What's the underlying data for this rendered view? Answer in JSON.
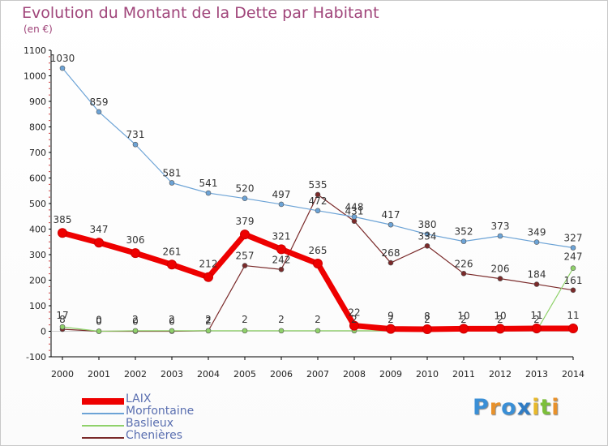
{
  "title": "Evolution du Montant de la Dette par Habitant",
  "subtitle": "(en €)",
  "brand": {
    "letters": [
      "P",
      "r",
      "o",
      "x",
      "i",
      "t",
      "i"
    ],
    "colors": [
      "#3a8fd6",
      "#e8912b",
      "#3a8fd6",
      "#2f7cc4",
      "#e8b92b",
      "#7cbf3a",
      "#e8912b"
    ]
  },
  "chart_data": {
    "type": "line",
    "title": "Evolution du Montant de la Dette par Habitant",
    "subtitle": "(en €)",
    "xlabel": "",
    "ylabel": "",
    "x": [
      "2000",
      "2001",
      "2002",
      "2003",
      "2004",
      "2005",
      "2006",
      "2007",
      "2008",
      "2009",
      "2010",
      "2011",
      "2012",
      "2013",
      "2014"
    ],
    "ylim": [
      -100,
      1100
    ],
    "yticks": [
      -100,
      0,
      100,
      200,
      300,
      400,
      500,
      600,
      700,
      800,
      900,
      1000,
      1100
    ],
    "grid": false,
    "legend_position": "bottom-left",
    "series": [
      {
        "name": "LAIX",
        "color": "#ee0000",
        "values": [
          385,
          347,
          306,
          261,
          212,
          379,
          321,
          265,
          22,
          9,
          8,
          10,
          10,
          11,
          11
        ],
        "labels": [
          "385",
          "347",
          "306",
          "261",
          "212",
          "379",
          "321",
          "265",
          "22",
          "9",
          "8",
          "10",
          "10",
          "11",
          "11"
        ]
      },
      {
        "name": "Morfontaine",
        "color": "#6ca3d6",
        "values": [
          1030,
          859,
          731,
          581,
          541,
          520,
          497,
          472,
          448,
          417,
          380,
          352,
          373,
          349,
          327
        ],
        "labels": [
          "1030",
          "859",
          "731",
          "581",
          "541",
          "520",
          "497",
          "472",
          "448",
          "417",
          "380",
          "352",
          "373",
          "349",
          "327"
        ]
      },
      {
        "name": "Baslieux",
        "color": "#8fd16a",
        "values": [
          17,
          0,
          2,
          2,
          2,
          2,
          2,
          2,
          2,
          2,
          2,
          2,
          2,
          2,
          247
        ],
        "labels": [
          "17",
          "0",
          "2",
          "2",
          "2",
          "2",
          "2",
          "2",
          "2",
          "2",
          "2",
          "2",
          "2",
          "2",
          "247"
        ]
      },
      {
        "name": "Chenières",
        "color": "#7a2a2a",
        "values": [
          8,
          0,
          0,
          0,
          2,
          257,
          242,
          535,
          431,
          268,
          334,
          226,
          206,
          184,
          161
        ],
        "labels": [
          "8",
          "0",
          "0",
          "0",
          "2",
          "257",
          "242",
          "535",
          "431",
          "268",
          "334",
          "226",
          "206",
          "184",
          "161"
        ]
      }
    ]
  }
}
